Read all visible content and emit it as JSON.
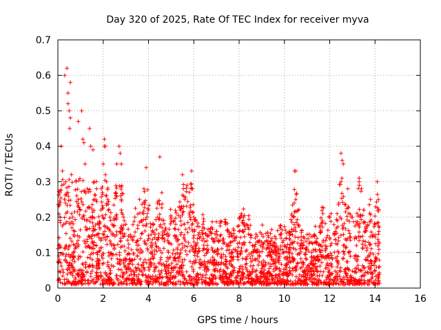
{
  "chart_data": {
    "type": "scatter",
    "title": "Day 320 of 2025, Rate Of TEC Index for receiver myva",
    "xlabel": "GPS time / hours",
    "ylabel": "ROTI / TECUs",
    "xlim": [
      0,
      16
    ],
    "ylim": [
      0,
      0.7
    ],
    "xticks": [
      0,
      2,
      4,
      6,
      8,
      10,
      12,
      14,
      16
    ],
    "yticks": [
      0,
      0.1,
      0.2,
      0.3,
      0.4,
      0.5,
      0.6,
      0.7
    ],
    "ytick_labels": [
      "0",
      "0.1",
      "0.2",
      "0.3",
      "0.4",
      "0.5",
      "0.6",
      "0.7"
    ],
    "grid": true,
    "marker": "+",
    "color": "#ff0000",
    "series": [
      {
        "name": "ROTI",
        "x": [
          0.05,
          0.1,
          0.15,
          0.2,
          0.25,
          0.3,
          0.35,
          0.4,
          0.45,
          0.5,
          0.52,
          0.55,
          0.6,
          0.65,
          0.7,
          0.8,
          0.9,
          1.0,
          1.05,
          1.1,
          1.2,
          1.3,
          1.4,
          1.45,
          1.5,
          1.6,
          1.7,
          1.8,
          1.9,
          2.0,
          2.05,
          2.1,
          2.15,
          2.2,
          2.3,
          2.4,
          2.5,
          2.6,
          2.7,
          2.75,
          2.8,
          2.9,
          3.0,
          3.2,
          3.4,
          3.6,
          3.8,
          3.9,
          4.0,
          4.2,
          4.4,
          4.6,
          4.8,
          5.0,
          5.2,
          5.4,
          5.6,
          5.7,
          5.8,
          5.9,
          6.0,
          6.2,
          6.4,
          6.6,
          6.8,
          7.0,
          7.2,
          7.4,
          7.6,
          7.8,
          8.0,
          8.2,
          8.4,
          8.6,
          8.8,
          9.0,
          9.2,
          9.4,
          9.6,
          9.8,
          10.0,
          10.2,
          10.4,
          10.45,
          10.5,
          10.6,
          10.8,
          11.0,
          11.2,
          11.4,
          11.6,
          11.8,
          12.0,
          12.2,
          12.4,
          12.5,
          12.6,
          12.8,
          13.0,
          13.2,
          13.3,
          13.4,
          13.5,
          13.6,
          13.8,
          14.0,
          14.1,
          14.15,
          0.3,
          0.45,
          0.55,
          0.9,
          1.15,
          1.55,
          2.05,
          2.1,
          2.8,
          3.9,
          4.5,
          5.5,
          5.9,
          8.1,
          10.5,
          11.7,
          12.5,
          12.55,
          13.3,
          14.1
        ],
        "y": [
          0.12,
          0.2,
          0.4,
          0.33,
          0.18,
          0.25,
          0.3,
          0.62,
          0.55,
          0.5,
          0.45,
          0.58,
          0.32,
          0.2,
          0.15,
          0.3,
          0.25,
          0.22,
          0.5,
          0.42,
          0.35,
          0.28,
          0.45,
          0.4,
          0.2,
          0.25,
          0.3,
          0.18,
          0.22,
          0.35,
          0.42,
          0.4,
          0.3,
          0.25,
          0.2,
          0.15,
          0.12,
          0.35,
          0.4,
          0.38,
          0.25,
          0.2,
          0.18,
          0.15,
          0.2,
          0.25,
          0.28,
          0.34,
          0.22,
          0.18,
          0.2,
          0.17,
          0.15,
          0.2,
          0.18,
          0.22,
          0.25,
          0.29,
          0.27,
          0.33,
          0.2,
          0.15,
          0.18,
          0.12,
          0.14,
          0.16,
          0.15,
          0.18,
          0.12,
          0.14,
          0.16,
          0.2,
          0.17,
          0.12,
          0.1,
          0.13,
          0.11,
          0.12,
          0.1,
          0.15,
          0.12,
          0.1,
          0.2,
          0.33,
          0.25,
          0.18,
          0.12,
          0.11,
          0.1,
          0.13,
          0.1,
          0.12,
          0.2,
          0.15,
          0.24,
          0.38,
          0.35,
          0.28,
          0.2,
          0.18,
          0.3,
          0.28,
          0.22,
          0.17,
          0.25,
          0.15,
          0.3,
          0.25,
          0.6,
          0.52,
          0.48,
          0.47,
          0.41,
          0.39,
          0.4,
          0.32,
          0.35,
          0.34,
          0.37,
          0.32,
          0.28,
          0.21,
          0.33,
          0.21,
          0.3,
          0.36,
          0.31,
          0.3
        ]
      }
    ]
  }
}
